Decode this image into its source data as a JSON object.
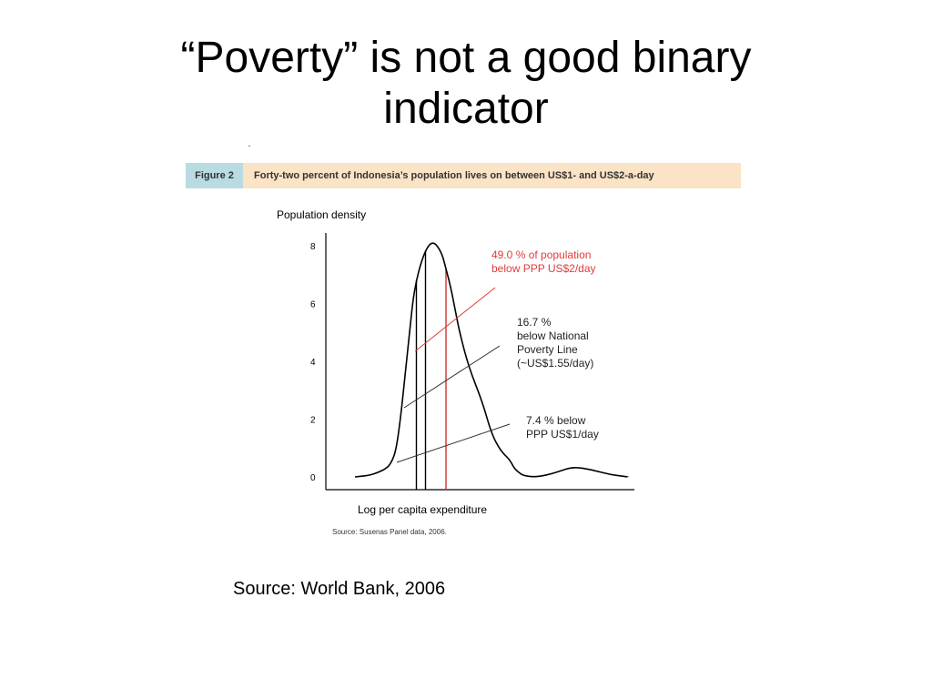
{
  "slide": {
    "title_line1": "“Poverty” is not a good binary",
    "title_line2": "indicator",
    "source": "Source:  World Bank, 2006"
  },
  "figure": {
    "label": "Figure 2",
    "caption": "Forty-two percent of Indonesia’s population lives on between US$1- and US$2-a-day",
    "header_colors": {
      "label_bg": "#b9dbe2",
      "caption_bg": "#fbe3c6"
    }
  },
  "chart_data": {
    "type": "line",
    "ylabel": "Population density",
    "xlabel": "Log per capita expenditure",
    "source_note": "Source: Susenas Panel data, 2006.",
    "ylim": [
      0,
      8
    ],
    "yticks": [
      0,
      2,
      4,
      6,
      8
    ],
    "grid": false,
    "series": [
      {
        "values_x": [
          0.0,
          0.03,
          0.05,
          0.07,
          0.08,
          0.09,
          0.1,
          0.11,
          0.12,
          0.13,
          0.15,
          0.17,
          0.19,
          0.2,
          0.21,
          0.22,
          0.23,
          0.25,
          0.28,
          0.3,
          0.32,
          0.34,
          0.35,
          0.36,
          0.37,
          0.39,
          0.41,
          0.43,
          0.45,
          0.48,
          0.52,
          0.56,
          0.6
        ],
        "values_y": [
          0.0,
          0.05,
          0.15,
          0.3,
          0.5,
          0.9,
          2.0,
          3.5,
          5.0,
          6.5,
          7.7,
          8.2,
          7.8,
          7.2,
          6.6,
          5.8,
          5.0,
          3.8,
          2.6,
          1.5,
          0.9,
          0.6,
          0.3,
          0.15,
          0.05,
          0.0,
          0.03,
          0.1,
          0.2,
          0.35,
          0.25,
          0.08,
          0.0
        ],
        "color": "#000000"
      }
    ],
    "thresholds": [
      {
        "label": "PPP US$1/day",
        "x": 0.135,
        "color": "#000000"
      },
      {
        "label": "National Poverty Line",
        "x": 0.155,
        "color": "#000000"
      },
      {
        "label": "PPP US$2/day",
        "x": 0.2,
        "color": "#d32f2f"
      }
    ],
    "annotations": [
      {
        "lines": [
          "49.0 % of population",
          "below PPP US$2/day"
        ],
        "color": "#e23a3a"
      },
      {
        "lines": [
          "16.7 %",
          "below National",
          "Poverty Line",
          "(~US$1.55/day)"
        ],
        "color": "#222222"
      },
      {
        "lines": [
          "7.4 % below",
          "PPP US$1/day"
        ],
        "color": "#222222"
      }
    ]
  }
}
